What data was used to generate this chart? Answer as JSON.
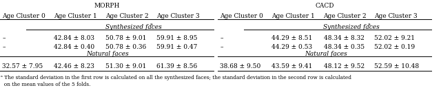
{
  "title_morph": "MORPH",
  "title_cacd": "CACD",
  "col_headers": [
    "Age Cluster 0",
    "Age Cluster 1",
    "Age Cluster 2",
    "Age Cluster 3"
  ],
  "section_synthesized": "Synthesized faces",
  "section_natural": "Natural faces",
  "morph_synth_row1": [
    "–",
    "42.84 ± 8.03",
    "50.78 ± 9.01",
    "59.91 ± 8.95"
  ],
  "morph_synth_row2": [
    "–",
    "42.84 ± 0.40",
    "50.78 ± 0.36",
    "59.91 ± 0.47"
  ],
  "morph_natural_row": [
    "32.57 ± 7.95",
    "42.46 ± 8.23",
    "51.30 ± 9.01",
    "61.39 ± 8.56"
  ],
  "cacd_synth_row1": [
    "–",
    "44.29 ± 8.51",
    "48.34 ± 8.32",
    "52.02 ± 9.21"
  ],
  "cacd_synth_row2": [
    "–",
    "44.29 ± 0.53",
    "48.34 ± 0.35",
    "52.02 ± 0.19"
  ],
  "cacd_natural_row": [
    "38.68 ± 9.50",
    "43.59 ± 9.41",
    "48.12 ± 9.52",
    "52.59 ± 10.48"
  ],
  "footnote_super": "ᵃ",
  "footnote_text": " The standard deviation in the first row is calculated on all the synthesized faces; the standard deviation in the second row is calculated\n  on the mean values of the 5 folds.",
  "bg_color": "#ffffff",
  "text_color": "#000000",
  "font_size": 6.5
}
